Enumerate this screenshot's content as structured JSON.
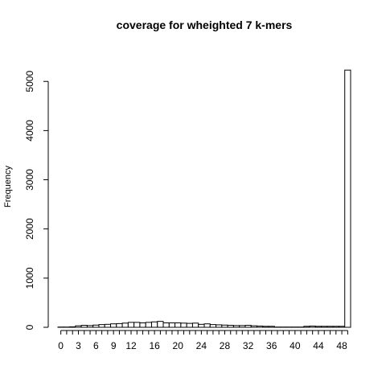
{
  "chart_data": {
    "type": "bar",
    "title": "coverage for wheighted 7 k-mers",
    "xlabel": "",
    "ylabel": "Frequency",
    "x_tick_labels": [
      "0",
      "3",
      "6",
      "9",
      "12",
      "16",
      "20",
      "24",
      "28",
      "32",
      "36",
      "40",
      "44",
      "48"
    ],
    "x_tick_values": [
      0,
      3,
      6,
      9,
      12,
      16,
      20,
      24,
      28,
      32,
      36,
      40,
      44,
      48
    ],
    "y_ticks": [
      0,
      1000,
      2000,
      3000,
      4000,
      5000
    ],
    "ylim": [
      0,
      5200
    ],
    "bins": [
      0,
      1,
      2,
      3,
      4,
      5,
      6,
      7,
      8,
      9,
      10,
      11,
      12,
      13,
      14,
      15,
      16,
      17,
      18,
      19,
      20,
      21,
      22,
      23,
      24,
      25,
      26,
      27,
      28,
      29,
      30,
      31,
      32,
      33,
      34,
      35,
      36,
      37,
      38,
      39,
      40,
      41,
      42,
      43,
      44,
      45,
      46,
      47,
      48,
      49
    ],
    "values": [
      5,
      5,
      10,
      30,
      40,
      35,
      45,
      55,
      60,
      70,
      75,
      85,
      100,
      100,
      90,
      100,
      110,
      120,
      90,
      90,
      90,
      85,
      80,
      85,
      60,
      70,
      55,
      50,
      45,
      40,
      35,
      35,
      40,
      30,
      25,
      20,
      20,
      5,
      5,
      5,
      5,
      5,
      20,
      25,
      20,
      20,
      20,
      20,
      20,
      5230
    ],
    "grid": false,
    "colors": {
      "bar_fill": "#ffffff",
      "bar_stroke": "#000000"
    }
  }
}
